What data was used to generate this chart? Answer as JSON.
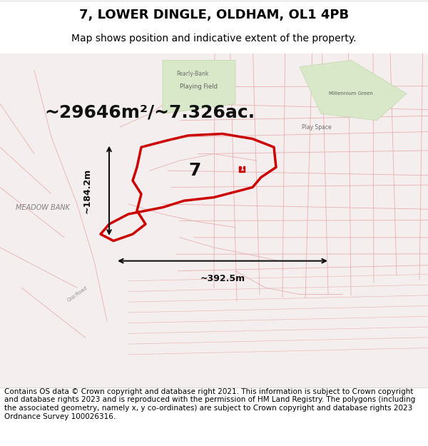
{
  "title": "7, LOWER DINGLE, OLDHAM, OL1 4PB",
  "subtitle": "Map shows position and indicative extent of the property.",
  "area_text": "~29646m²/~7.326ac.",
  "width_text": "~392.5m",
  "height_text": "~184.2m",
  "property_number": "7",
  "copyright_text": "Contains OS data © Crown copyright and database right 2021. This information is subject to Crown copyright and database rights 2023 and is reproduced with the permission of HM Land Registry. The polygons (including the associated geometry, namely x, y co-ordinates) are subject to Crown copyright and database rights 2023 Ordnance Survey 100026316.",
  "bg_color": "#f5f0f0",
  "map_bg": "#f9f5f5",
  "road_color": "#e8b0b0",
  "property_outline_color": "#cc0000",
  "dim_line_color": "#111111",
  "title_fontsize": 13,
  "subtitle_fontsize": 10,
  "area_fontsize": 18,
  "label_fontsize": 9,
  "copyright_fontsize": 7.5
}
